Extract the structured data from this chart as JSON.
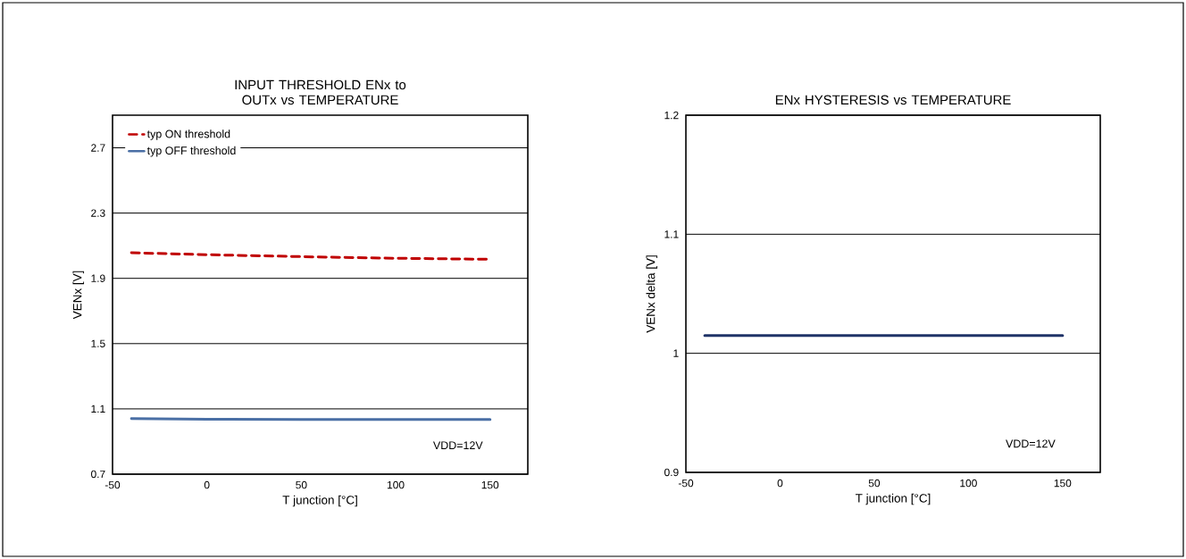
{
  "chart_data": [
    {
      "type": "line",
      "title": "INPUT THRESHOLD ENx to OUTx vs TEMPERATURE",
      "xlabel": "T junction [°C]",
      "ylabel": "VENx [V]",
      "x": [
        -40,
        0,
        50,
        100,
        150
      ],
      "series": [
        {
          "name": "typ ON threshold",
          "color": "#c00000",
          "line_style": "dashed",
          "values": [
            2.057,
            2.045,
            2.033,
            2.023,
            2.017
          ]
        },
        {
          "name": "typ OFF threshold",
          "color": "#4a6fa5",
          "line_style": "solid",
          "values": [
            1.041,
            1.037,
            1.035,
            1.035,
            1.035
          ]
        }
      ],
      "xlim": [
        -50,
        170
      ],
      "xticks": [
        -50,
        0,
        50,
        100,
        150
      ],
      "ylim": [
        0.7,
        2.9
      ],
      "yticks": [
        0.7,
        1.1,
        1.5,
        1.9,
        2.3,
        2.7
      ],
      "grid": "y",
      "legend": "top left",
      "marker": "none",
      "annotations": [
        "VDD=12V"
      ]
    },
    {
      "type": "line",
      "title": "ENx HYSTERESIS vs TEMPERATURE",
      "xlabel": "T junction [°C]",
      "ylabel": "VENx delta [V]",
      "x": [
        -40,
        150
      ],
      "series": [
        {
          "color": "#1f3368",
          "line_style": "solid",
          "values": [
            1.015,
            1.015
          ]
        }
      ],
      "xlim": [
        -50,
        170
      ],
      "xticks": [
        -50,
        0,
        50,
        100,
        150
      ],
      "ylim": [
        0.9,
        1.2
      ],
      "yticks": [
        0.9,
        1,
        1.1,
        1.2
      ],
      "grid": "y",
      "legend": false,
      "marker": "none",
      "annotations": [
        "VDD=12V"
      ]
    }
  ]
}
